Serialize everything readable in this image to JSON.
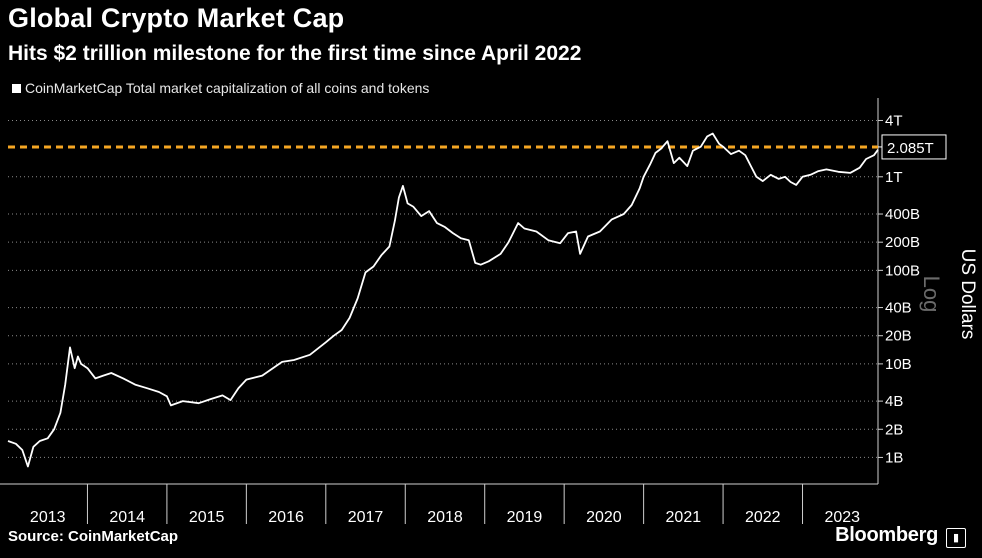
{
  "title": "Global Crypto Market Cap",
  "subtitle": "Hits $2 trillion milestone for the first time since April 2022",
  "legend_label": "CoinMarketCap Total market capitalization of all coins and tokens",
  "source": "Source: CoinMarketCap",
  "brand": "Bloomberg",
  "colors": {
    "line": "#ffffff",
    "reference": "#f5a623",
    "grid": "#8a8a8a",
    "background": "#000000"
  },
  "chart_data": {
    "type": "line",
    "title": "Global Crypto Market Cap",
    "ylabel": "US Dollars",
    "yscale_label": "Log",
    "yscale": "log",
    "ylim": [
      520000000,
      6000000000000
    ],
    "xlim": [
      2013.0,
      2023.95
    ],
    "y_ticks": [
      {
        "value": 4000000000000,
        "label": "4T"
      },
      {
        "value": 1000000000000,
        "label": "1T"
      },
      {
        "value": 400000000000,
        "label": "400B"
      },
      {
        "value": 200000000000,
        "label": "200B"
      },
      {
        "value": 100000000000,
        "label": "100B"
      },
      {
        "value": 40000000000,
        "label": "40B"
      },
      {
        "value": 20000000000,
        "label": "20B"
      },
      {
        "value": 10000000000,
        "label": "10B"
      },
      {
        "value": 4000000000,
        "label": "4B"
      },
      {
        "value": 2000000000,
        "label": "2B"
      },
      {
        "value": 1000000000,
        "label": "1B"
      }
    ],
    "x_ticks": [
      {
        "value": 2013.5,
        "label": "2013"
      },
      {
        "value": 2014.5,
        "label": "2014"
      },
      {
        "value": 2015.5,
        "label": "2015"
      },
      {
        "value": 2016.5,
        "label": "2016"
      },
      {
        "value": 2017.5,
        "label": "2017"
      },
      {
        "value": 2018.5,
        "label": "2018"
      },
      {
        "value": 2019.5,
        "label": "2019"
      },
      {
        "value": 2020.5,
        "label": "2020"
      },
      {
        "value": 2021.5,
        "label": "2021"
      },
      {
        "value": 2022.5,
        "label": "2022"
      },
      {
        "value": 2023.5,
        "label": "2023"
      }
    ],
    "reference_line": {
      "value": 2085000000000,
      "label": "2.085T"
    },
    "series": [
      {
        "name": "CoinMarketCap Total market capitalization of all coins and tokens",
        "x": [
          2013.0,
          2013.1,
          2013.18,
          2013.25,
          2013.32,
          2013.4,
          2013.5,
          2013.58,
          2013.66,
          2013.72,
          2013.78,
          2013.84,
          2013.88,
          2013.92,
          2014.0,
          2014.1,
          2014.2,
          2014.3,
          2014.45,
          2014.6,
          2014.75,
          2014.9,
          2015.0,
          2015.05,
          2015.2,
          2015.4,
          2015.55,
          2015.7,
          2015.8,
          2015.9,
          2016.0,
          2016.2,
          2016.45,
          2016.6,
          2016.8,
          2017.0,
          2017.1,
          2017.2,
          2017.3,
          2017.4,
          2017.5,
          2017.6,
          2017.7,
          2017.8,
          2017.87,
          2017.92,
          2017.97,
          2018.03,
          2018.1,
          2018.2,
          2018.3,
          2018.4,
          2018.5,
          2018.6,
          2018.7,
          2018.8,
          2018.88,
          2018.95,
          2019.05,
          2019.2,
          2019.3,
          2019.42,
          2019.5,
          2019.65,
          2019.8,
          2019.95,
          2020.05,
          2020.15,
          2020.2,
          2020.3,
          2020.45,
          2020.6,
          2020.75,
          2020.85,
          2020.95,
          2021.0,
          2021.08,
          2021.15,
          2021.22,
          2021.3,
          2021.38,
          2021.45,
          2021.55,
          2021.62,
          2021.72,
          2021.8,
          2021.87,
          2021.95,
          2022.0,
          2022.1,
          2022.2,
          2022.28,
          2022.35,
          2022.42,
          2022.5,
          2022.6,
          2022.7,
          2022.78,
          2022.85,
          2022.92,
          2023.0,
          2023.1,
          2023.2,
          2023.3,
          2023.45,
          2023.6,
          2023.72,
          2023.8,
          2023.9,
          2023.95
        ],
        "values": [
          1500000000.0,
          1400000000.0,
          1200000000.0,
          800000000.0,
          1300000000.0,
          1500000000.0,
          1600000000.0,
          2000000000.0,
          3000000000.0,
          6000000000.0,
          15000000000.0,
          9000000000.0,
          12000000000.0,
          10000000000.0,
          9000000000.0,
          7000000000.0,
          7500000000.0,
          8000000000.0,
          7000000000.0,
          6000000000.0,
          5500000000.0,
          5000000000.0,
          4500000000.0,
          3600000000.0,
          4000000000.0,
          3800000000.0,
          4200000000.0,
          4600000000.0,
          4100000000.0,
          5500000000.0,
          6800000000.0,
          7500000000.0,
          10500000000.0,
          11000000000.0,
          12500000000.0,
          17000000000.0,
          20000000000.0,
          23000000000.0,
          31000000000.0,
          50000000000.0,
          95000000000.0,
          110000000000.0,
          145000000000.0,
          180000000000.0,
          340000000000.0,
          600000000000.0,
          800000000000.0,
          520000000000.0,
          480000000000.0,
          380000000000.0,
          430000000000.0,
          320000000000.0,
          290000000000.0,
          250000000000.0,
          220000000000.0,
          210000000000.0,
          120000000000.0,
          115000000000.0,
          125000000000.0,
          150000000000.0,
          200000000000.0,
          320000000000.0,
          280000000000.0,
          260000000000.0,
          210000000000.0,
          195000000000.0,
          250000000000.0,
          260000000000.0,
          150000000000.0,
          230000000000.0,
          260000000000.0,
          350000000000.0,
          400000000000.0,
          500000000000.0,
          750000000000.0,
          1000000000000.0,
          1350000000000.0,
          1800000000000.0,
          2000000000000.0,
          2400000000000.0,
          1400000000000.0,
          1600000000000.0,
          1300000000000.0,
          1900000000000.0,
          2100000000000.0,
          2700000000000.0,
          2900000000000.0,
          2250000000000.0,
          2100000000000.0,
          1750000000000.0,
          1900000000000.0,
          1700000000000.0,
          1300000000000.0,
          1000000000000.0,
          900000000000.0,
          1050000000000.0,
          950000000000.0,
          1000000000000.0,
          880000000000.0,
          820000000000.0,
          1000000000000.0,
          1050000000000.0,
          1150000000000.0,
          1200000000000.0,
          1130000000000.0,
          1100000000000.0,
          1250000000000.0,
          1550000000000.0,
          1700000000000.0,
          1950000000000.0
        ]
      }
    ]
  }
}
